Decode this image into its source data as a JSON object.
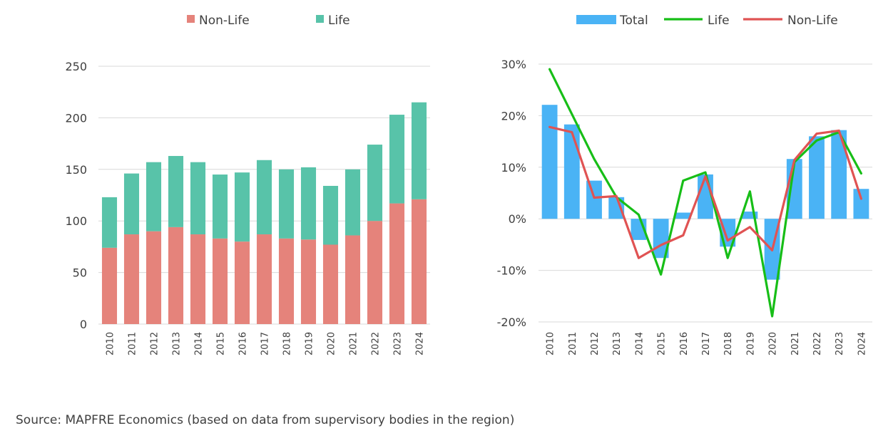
{
  "source": "Source: MAPFRE Economics (based on data from supervisory bodies in the region)",
  "colors": {
    "nonlife": "#E5837B",
    "life": "#58C3A9",
    "total": "#4AB3F5",
    "life_line": "#17BE17",
    "nonlife_line": "#E05353",
    "grid": "#D9D9D9",
    "text": "#404040"
  },
  "chart_data": [
    {
      "type": "bar",
      "stacked": true,
      "title": "",
      "categories": [
        "2010",
        "2011",
        "2012",
        "2013",
        "2014",
        "2015",
        "2016",
        "2017",
        "2018",
        "2019",
        "2020",
        "2021",
        "2022",
        "2023",
        "2024"
      ],
      "series": [
        {
          "name": "Non-Life",
          "values": [
            74,
            87,
            90,
            94,
            87,
            83,
            80,
            87,
            83,
            82,
            77,
            86,
            100,
            117,
            121
          ]
        },
        {
          "name": "Life",
          "values": [
            49,
            59,
            67,
            69,
            70,
            62,
            67,
            72,
            67,
            70,
            57,
            64,
            74,
            86,
            94
          ]
        }
      ],
      "ylim": [
        0,
        250
      ],
      "yticks": [
        "0",
        "50",
        "100",
        "150",
        "200",
        "250"
      ],
      "grid": true,
      "legend": "top"
    },
    {
      "type": "bar+line",
      "title": "",
      "categories": [
        "2010",
        "2011",
        "2012",
        "2013",
        "2014",
        "2015",
        "2016",
        "2017",
        "2018",
        "2019",
        "2020",
        "2021",
        "2022",
        "2023",
        "2024"
      ],
      "series": [
        {
          "name": "Total",
          "kind": "bar",
          "values": [
            22.1,
            18.3,
            7.4,
            4.2,
            -4.1,
            -7.6,
            1.2,
            8.6,
            -5.4,
            1.4,
            -11.8,
            11.6,
            16.0,
            17.2,
            5.8
          ]
        },
        {
          "name": "Life",
          "kind": "line",
          "values": [
            29.0,
            20.3,
            11.6,
            4.2,
            0.8,
            -10.8,
            7.4,
            9.0,
            -7.6,
            5.3,
            -18.9,
            11.0,
            15.2,
            16.8,
            8.8
          ]
        },
        {
          "name": "Non-Life",
          "kind": "line",
          "values": [
            17.8,
            16.8,
            4.1,
            4.4,
            -7.6,
            -5.1,
            -3.2,
            8.2,
            -4.2,
            -1.6,
            -6.1,
            11.4,
            16.5,
            17.1,
            3.9
          ]
        }
      ],
      "ylim": [
        -20,
        30
      ],
      "yticks": [
        "-20%",
        "-10%",
        "0%",
        "10%",
        "20%",
        "30%"
      ],
      "grid": true,
      "legend": "top"
    }
  ]
}
